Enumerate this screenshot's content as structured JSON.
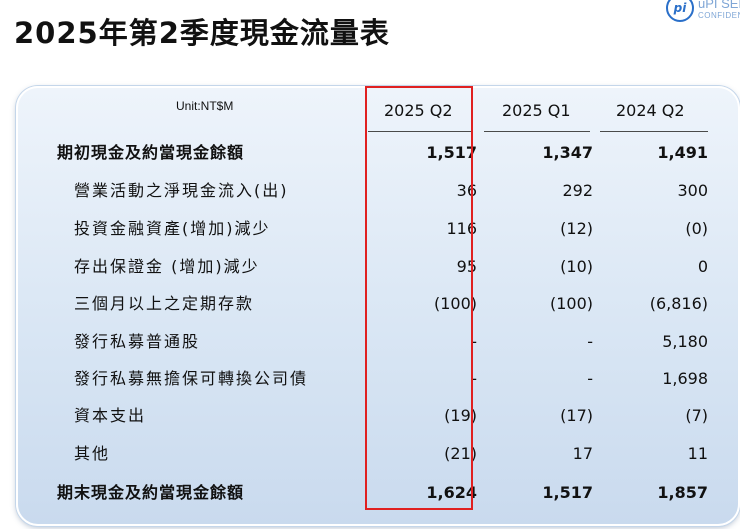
{
  "title": "2025年第2季度現金流量表",
  "logo": {
    "word": "uPI SEM",
    "sub": "CONFIDEN"
  },
  "table": {
    "unit": "Unit:NT$M",
    "columns": [
      "2025 Q2",
      "2025 Q1",
      "2024 Q2"
    ],
    "rows": [
      {
        "label": "期初現金及約當現金餘額",
        "values": [
          "1,517",
          "1,347",
          "1,491"
        ],
        "bold": true
      },
      {
        "label": "營業活動之淨現金流入(出)",
        "values": [
          "36",
          "292",
          "300"
        ]
      },
      {
        "label": "投資金融資產(增加)減少",
        "values": [
          "116",
          "(12)",
          "(0)"
        ]
      },
      {
        "label": "存出保證金 (增加)減少",
        "values": [
          "95",
          "(10)",
          "0"
        ]
      },
      {
        "label": "三個月以上之定期存款",
        "values": [
          "(100)",
          "(100)",
          "(6,816)"
        ]
      },
      {
        "label": "發行私募普通股",
        "values": [
          "-",
          "-",
          "5,180"
        ]
      },
      {
        "label": "發行私募無擔保可轉換公司債",
        "values": [
          "-",
          "-",
          "1,698"
        ]
      },
      {
        "label": "資本支出",
        "values": [
          "(19)",
          "(17)",
          "(7)"
        ]
      },
      {
        "label": "其他",
        "values": [
          "(21)",
          "17",
          "11"
        ]
      },
      {
        "label": "期末現金及約當現金餘額",
        "values": [
          "1,624",
          "1,517",
          "1,857"
        ],
        "bold": true
      }
    ]
  },
  "colors": {
    "highlight": "#e02020",
    "logo": "#2a6fc9"
  },
  "icons": {
    "logo": "upi-logo-icon"
  }
}
